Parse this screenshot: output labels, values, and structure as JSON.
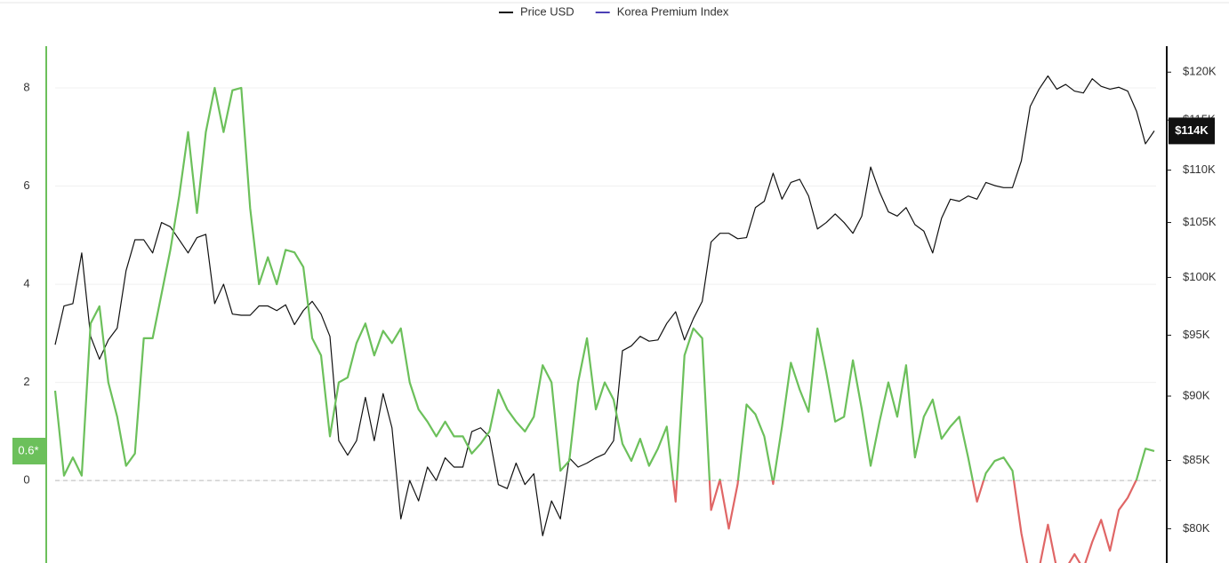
{
  "chart_data": {
    "type": "line",
    "ylim": [
      -1.68,
      8.85
    ],
    "yticks": [
      0,
      2,
      4,
      6,
      8
    ],
    "grid": true,
    "y2lim": [
      77600,
      122800
    ],
    "y2log": true,
    "y2ticks": [
      {
        "value": 80000,
        "label": "$80K"
      },
      {
        "value": 85000,
        "label": "$85K"
      },
      {
        "value": 90000,
        "label": "$90K"
      },
      {
        "value": 95000,
        "label": "$95K"
      },
      {
        "value": 100000,
        "label": "$100K"
      },
      {
        "value": 105000,
        "label": "$105K"
      },
      {
        "value": 110000,
        "label": "$110K"
      },
      {
        "value": 115000,
        "label": "$115K"
      },
      {
        "value": 120000,
        "label": "$120K"
      }
    ],
    "zero_line": 0,
    "legend": "top",
    "series": [
      {
        "name": "Price USD",
        "color": "#111111",
        "axis": "y2",
        "last_value_label": "$114K",
        "values": [
          94200,
          97500,
          97700,
          102200,
          94900,
          93000,
          94600,
          95600,
          100600,
          103400,
          103400,
          102200,
          105000,
          104600,
          103400,
          102200,
          103600,
          103900,
          97700,
          99400,
          96800,
          96700,
          96700,
          97500,
          97500,
          97100,
          97600,
          95900,
          97100,
          97900,
          96800,
          94900,
          86500,
          85400,
          86500,
          89900,
          86500,
          90200,
          87500,
          80700,
          83500,
          82000,
          84500,
          83500,
          85200,
          84500,
          84500,
          87200,
          87500,
          86800,
          83200,
          82900,
          84800,
          83200,
          84000,
          79500,
          82000,
          80700,
          85200,
          84500,
          84800,
          85200,
          85500,
          86500,
          93700,
          94100,
          94900,
          94500,
          94600,
          96000,
          97000,
          94600,
          96400,
          97900,
          103200,
          104000,
          104000,
          103500,
          103600,
          106400,
          107000,
          109700,
          107200,
          108800,
          109100,
          107500,
          104400,
          105000,
          105800,
          105000,
          104000,
          105600,
          110300,
          107900,
          106000,
          105600,
          106400,
          104800,
          104200,
          102200,
          105400,
          107200,
          107000,
          107500,
          107200,
          108800,
          108500,
          108300,
          108300,
          110900,
          116400,
          118200,
          119600,
          118200,
          118700,
          118000,
          117800,
          119300,
          118500,
          118200,
          118400,
          118000,
          115900,
          112600,
          113900
        ]
      },
      {
        "name": "Korea Premium Index",
        "color": "#4b3fb5",
        "positive_color": "#6cc05b",
        "negative_color": "#e06666",
        "axis": "y",
        "last_value_label": "0.6*",
        "values": [
          1.83,
          0.1,
          0.47,
          0.1,
          3.2,
          3.55,
          2.0,
          1.3,
          0.3,
          0.55,
          2.9,
          2.9,
          3.8,
          4.7,
          5.8,
          7.1,
          5.45,
          7.1,
          8.0,
          7.1,
          7.95,
          8.0,
          5.55,
          4.0,
          4.55,
          4.0,
          4.7,
          4.65,
          4.35,
          2.9,
          2.55,
          0.9,
          2.0,
          2.1,
          2.8,
          3.2,
          2.55,
          3.05,
          2.8,
          3.1,
          2.0,
          1.45,
          1.2,
          0.9,
          1.2,
          0.9,
          0.9,
          0.55,
          0.75,
          1.0,
          1.85,
          1.45,
          1.2,
          1.0,
          1.3,
          2.35,
          2.0,
          0.2,
          0.4,
          2.0,
          2.9,
          1.45,
          2.0,
          1.65,
          0.75,
          0.4,
          0.85,
          0.3,
          0.65,
          1.1,
          -0.43,
          2.55,
          3.1,
          2.9,
          -0.6,
          0.02,
          -0.98,
          -0.07,
          1.55,
          1.35,
          0.9,
          -0.07,
          1.1,
          2.4,
          1.85,
          1.4,
          3.1,
          2.2,
          1.2,
          1.3,
          2.45,
          1.45,
          0.3,
          1.2,
          2.0,
          1.3,
          2.35,
          0.47,
          1.3,
          1.65,
          0.85,
          1.1,
          1.3,
          0.47,
          -0.43,
          0.15,
          0.4,
          0.47,
          0.2,
          -1.07,
          -2.0,
          -1.8,
          -0.9,
          -1.8,
          -1.8,
          -1.5,
          -1.8,
          -1.25,
          -0.8,
          -1.43,
          -0.6,
          -0.35,
          0.02,
          0.65,
          0.6
        ]
      }
    ]
  }
}
